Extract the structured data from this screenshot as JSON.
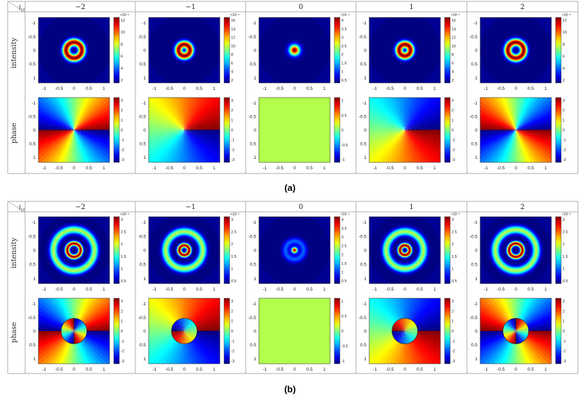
{
  "figure": {
    "corner_label": "l21",
    "row_labels": [
      "intensity",
      "phase"
    ],
    "column_headers": [
      "−2",
      "−1",
      "0",
      "1",
      "2"
    ],
    "axis_ticks": [
      "-1",
      "-0.5",
      "0",
      "0.5",
      "1"
    ],
    "panels": [
      {
        "caption": "(a)",
        "beam": "gaussian-vortex",
        "intensity_colorbars": [
          {
            "exponent": "×10⁻⁵",
            "ticks": [
              "12",
              "10",
              "8",
              "6",
              "4",
              "2"
            ]
          },
          {
            "exponent": "×10⁻⁵",
            "ticks": [
              "16",
              "14",
              "12",
              "10",
              "8",
              "6",
              "4",
              "2"
            ]
          },
          {
            "exponent": "×10⁻⁴",
            "ticks": [
              "4",
              "3.5",
              "3",
              "2.5",
              "2",
              "1.5",
              "1",
              "0.5"
            ]
          },
          {
            "exponent": "×10⁻⁵",
            "ticks": [
              "16",
              "14",
              "12",
              "10",
              "8",
              "6",
              "4",
              "2"
            ]
          },
          {
            "exponent": "×10⁻⁵",
            "ticks": [
              "12",
              "10",
              "8",
              "6",
              "4",
              "2"
            ]
          }
        ],
        "phase_colorbars": [
          {
            "ticks": [
              "3",
              "2",
              "1",
              "0",
              "-1",
              "-2",
              "-3"
            ]
          },
          {
            "ticks": [
              "3",
              "2",
              "1",
              "0",
              "-1",
              "-2",
              "-3"
            ]
          },
          {
            "ticks": [
              "1",
              "0.5",
              "0",
              "-0.5",
              "-1"
            ]
          },
          {
            "ticks": [
              "3",
              "2",
              "1",
              "0",
              "-1",
              "-2",
              "-3"
            ]
          },
          {
            "ticks": [
              "3",
              "2",
              "1",
              "0",
              "-1",
              "-2",
              "-3"
            ]
          }
        ]
      },
      {
        "caption": "(b)",
        "beam": "two-ring-vortex",
        "intensity_colorbars": [
          {
            "exponent": "×10⁻⁵",
            "ticks": [
              "3",
              "2.5",
              "2",
              "1.5",
              "1",
              "0.5"
            ]
          },
          {
            "exponent": "×10⁻⁵",
            "ticks": [
              "3",
              "2.5",
              "2",
              "1.5",
              "1",
              "0.5"
            ]
          },
          {
            "exponent": "×10⁻⁴",
            "ticks": [
              "4",
              "3.5",
              "3",
              "2.5",
              "2",
              "1.5",
              "1",
              "0.5"
            ]
          },
          {
            "exponent": "×10⁻⁵",
            "ticks": [
              "3",
              "2.5",
              "2",
              "1.5",
              "1",
              "0.5"
            ]
          },
          {
            "exponent": "×10⁻⁵",
            "ticks": [
              "3",
              "2.5",
              "2",
              "1.5",
              "1",
              "0.5"
            ]
          }
        ],
        "phase_colorbars": [
          {
            "ticks": [
              "3",
              "2",
              "1",
              "0",
              "-1",
              "-2",
              "-3"
            ]
          },
          {
            "ticks": [
              "3",
              "2",
              "1",
              "0",
              "-1",
              "-2",
              "-3"
            ]
          },
          {
            "ticks": [
              "1",
              "0.5",
              "0",
              "-0.5",
              "-1"
            ]
          },
          {
            "ticks": [
              "3",
              "2",
              "1",
              "0",
              "-1",
              "-2",
              "-3"
            ]
          },
          {
            "ticks": [
              "3",
              "2",
              "1",
              "0",
              "-1",
              "-2",
              "-3"
            ]
          }
        ]
      }
    ],
    "colormap": "jet"
  }
}
